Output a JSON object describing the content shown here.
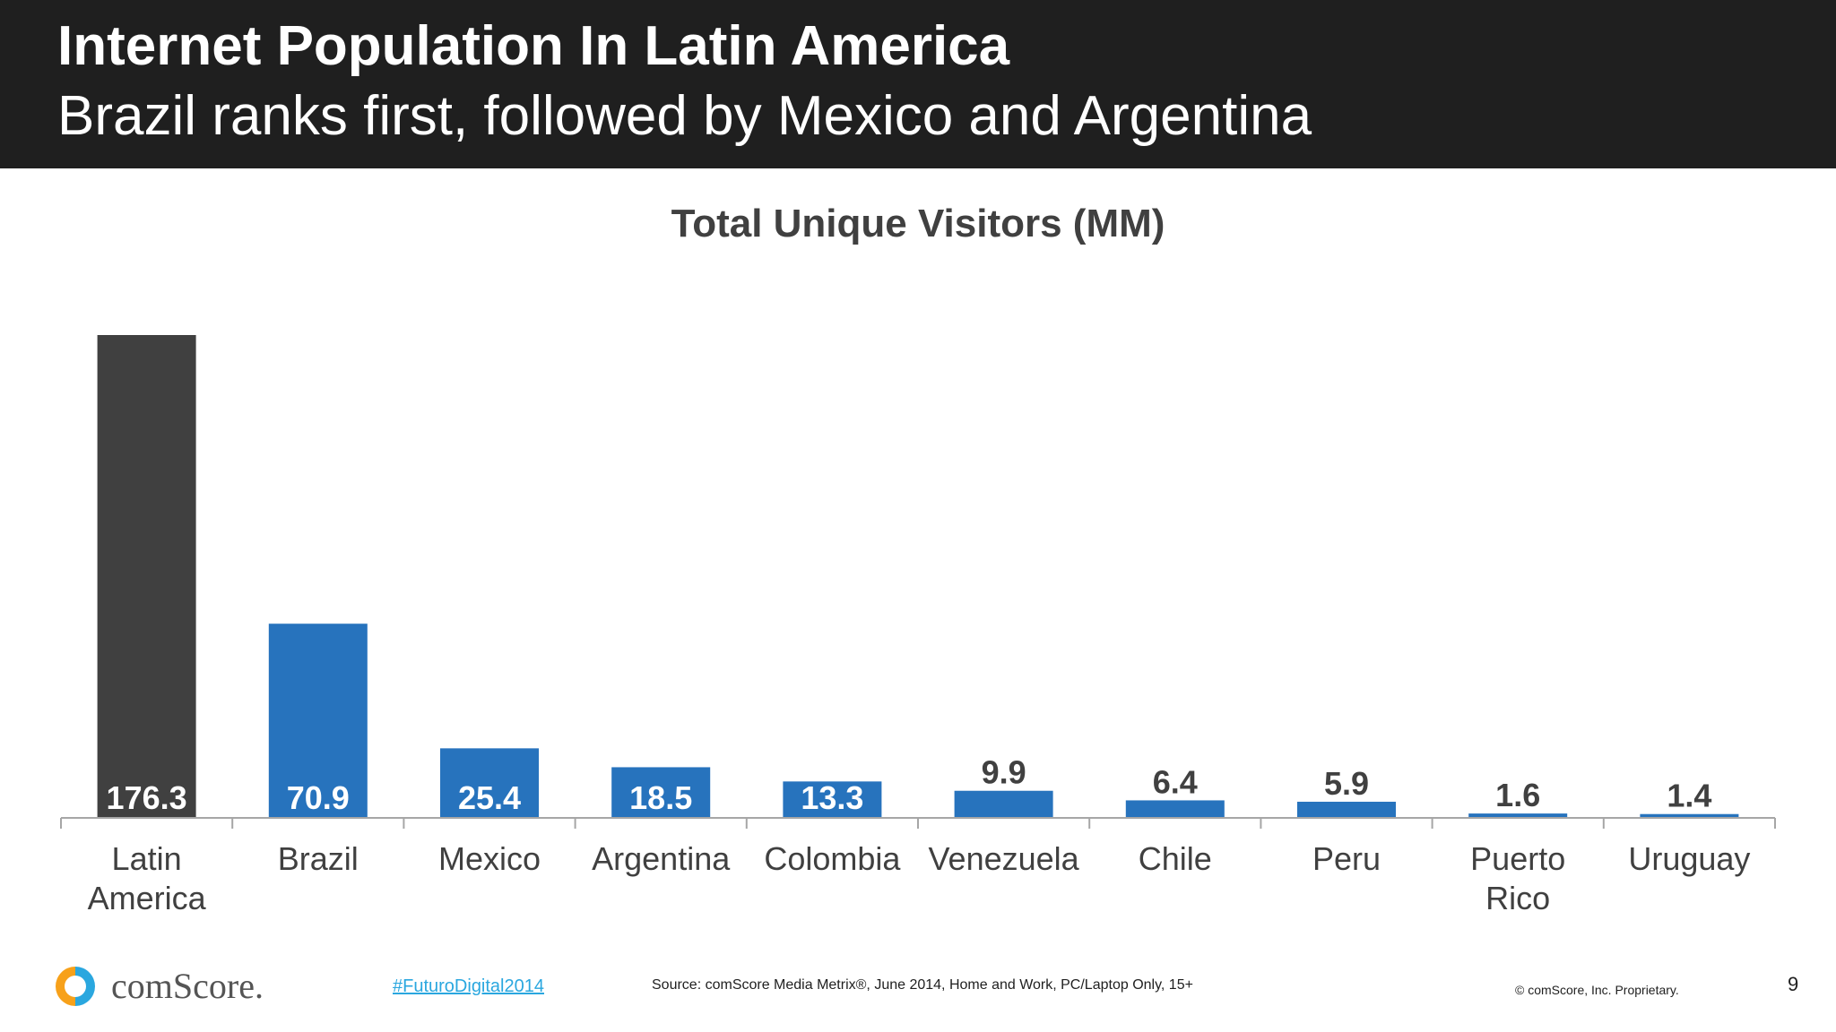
{
  "header": {
    "title": "Internet Population In Latin America",
    "subtitle": "Brazil ranks first, followed by Mexico and Argentina"
  },
  "chart_data": {
    "type": "bar",
    "title": "Total Unique Visitors (MM)",
    "xlabel": "",
    "ylabel": "",
    "categories": [
      [
        "Latin",
        "America"
      ],
      [
        "Brazil"
      ],
      [
        "Mexico"
      ],
      [
        "Argentina"
      ],
      [
        "Colombia"
      ],
      [
        "Venezuela"
      ],
      [
        "Chile"
      ],
      [
        "Peru"
      ],
      [
        "Puerto",
        "Rico"
      ],
      [
        "Uruguay"
      ]
    ],
    "values": [
      176.3,
      70.9,
      25.4,
      18.5,
      13.3,
      9.9,
      6.4,
      5.9,
      1.6,
      1.4
    ],
    "value_labels": [
      "176.3",
      "70.9",
      "25.4",
      "18.5",
      "13.3",
      "9.9",
      "6.4",
      "5.9",
      "1.6",
      "1.4"
    ],
    "ylim": [
      0,
      176.3
    ],
    "grid": false,
    "legend": "none",
    "colors": {
      "total_bar": "#404040",
      "country_bar": "#2773bd",
      "label_inside": "#ffffff",
      "label_outside": "#404040",
      "axis": "#a6a6a6"
    }
  },
  "footer": {
    "logo_text": "comScore.",
    "hashtag": "#FuturoDigital2014",
    "source": "Source: comScore Media Metrix®, June 2014, Home and Work, PC/Laptop Only, 15+",
    "copyright": "© comScore, Inc. Proprietary.",
    "page_number": "9"
  },
  "colors": {
    "header_bg": "#1f1f1f",
    "header_text": "#ffffff",
    "hashtag": "#2aa7df",
    "logo_orange": "#f7a11a",
    "logo_blue": "#2aa7df"
  }
}
